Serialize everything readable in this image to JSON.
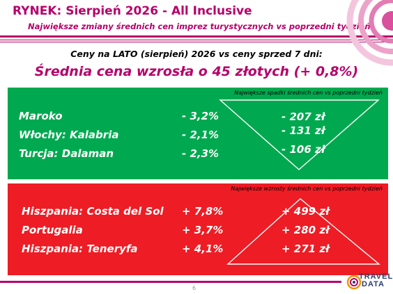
{
  "header": {
    "title": "RYNEK: Sierpień 2026 - All Inclusive",
    "subtitle": "Największe zmiany średnich cen imprez turystycznych vs poprzedni tydzień"
  },
  "intro": "Ceny na LATO (sierpień) 2026 vs ceny sprzed 7 dni:",
  "headline": "Średnia cena wzrosła o 45 złotych (+ 0,8%)",
  "drops": {
    "note": "Największe spadki średnich cen vs poprzedni tydzień",
    "color": "#00a94f",
    "rows": [
      {
        "name": "Maroko",
        "percent": "- 3,2%",
        "amount": "- 207 zł"
      },
      {
        "name": "Włochy: Kalabria",
        "percent": "- 2,1%",
        "amount": "- 131 zł"
      },
      {
        "name": "Turcja: Dalaman",
        "percent": "- 2,3%",
        "amount": "- 106 zł"
      }
    ]
  },
  "rises": {
    "note": "Największe wzrosty średnich cen vs poprzedni tydzień",
    "color": "#ee1c24",
    "rows": [
      {
        "name": "Hiszpania: Costa del Sol",
        "percent": "+ 7,8%",
        "amount": "+ 499 zł"
      },
      {
        "name": "Portugalia",
        "percent": "+ 3,7%",
        "amount": "+ 280 zł"
      },
      {
        "name": "Hiszpania: Teneryfa",
        "percent": "+ 4,1%",
        "amount": "+ 271 zł"
      }
    ]
  },
  "footer": {
    "page_number": "6",
    "logo_line1": "TRAVEL",
    "logo_line2": "DATA"
  },
  "accent_color": "#b5006a"
}
